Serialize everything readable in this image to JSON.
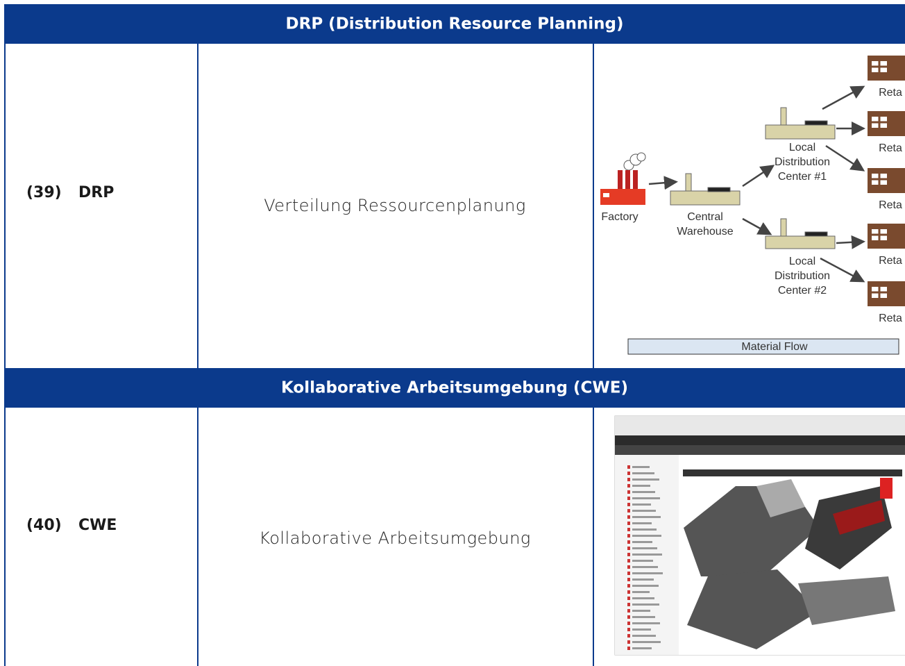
{
  "table": {
    "sections": [
      {
        "header": "DRP (Distribution Resource Planning)",
        "number": "(39)",
        "abbr": "DRP",
        "description": "Verteilung Ressourcenplanung"
      },
      {
        "header": "Kollaborative Arbeitsumgebung (CWE)",
        "number": "(40)",
        "abbr": "CWE",
        "description": "Kollaborative Arbeitsumgebung"
      }
    ]
  },
  "diagram": {
    "factory": "Factory",
    "central_warehouse": [
      "Central",
      "Warehouse"
    ],
    "local_dc_1": [
      "Local",
      "Distribution",
      "Center #1"
    ],
    "local_dc_2": [
      "Local",
      "Distribution",
      "Center #2"
    ],
    "retailers": [
      "Reta",
      "Reta",
      "Reta",
      "Reta",
      "Reta"
    ],
    "flow_label": "Material Flow"
  }
}
